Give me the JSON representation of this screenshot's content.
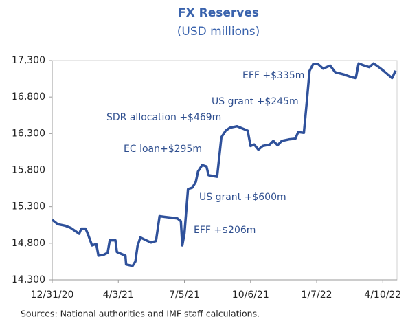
{
  "chart_data": {
    "type": "line",
    "title": "FX Reserves",
    "subtitle": "(USD millions)",
    "source": "Sources: National authorities and IMF staff calculations.",
    "x": [
      "12/31/20",
      "1/8/21",
      "1/18/21",
      "1/26/21",
      "2/7/21",
      "2/10/21",
      "2/16/21",
      "2/19/21",
      "2/25/21",
      "3/3/21",
      "3/6/21",
      "3/13/21",
      "3/19/21",
      "3/22/21",
      "3/30/21",
      "4/1/21",
      "4/13/21",
      "4/14/21",
      "4/23/21",
      "4/27/21",
      "4/30/21",
      "5/4/21",
      "5/10/21",
      "5/19/21",
      "5/26/21",
      "5/31/21",
      "6/8/21",
      "6/25/21",
      "6/30/21",
      "7/2/21",
      "7/5/21",
      "7/10/21",
      "7/16/21",
      "7/21/21",
      "7/24/21",
      "7/30/21",
      "8/5/21",
      "8/8/21",
      "8/20/21",
      "8/26/21",
      "9/1/21",
      "9/7/21",
      "9/17/21",
      "9/27/21",
      "10/2/21",
      "10/6/21",
      "10/11/21",
      "10/17/21",
      "10/23/21",
      "11/2/21",
      "11/7/21",
      "11/13/21",
      "11/19/21",
      "11/29/21",
      "12/8/21",
      "12/12/21",
      "12/20/21",
      "12/24/21",
      "12/28/21",
      "1/2/22",
      "1/9/22",
      "1/16/22",
      "1/26/22",
      "2/2/22",
      "2/14/22",
      "2/26/22",
      "3/3/22",
      "3/7/22",
      "3/15/22",
      "3/22/22",
      "3/28/22",
      "4/3/22",
      "4/11/22",
      "4/23/22",
      "4/28/22"
    ],
    "series": [
      {
        "name": "FX Reserves",
        "color": "#2f519b",
        "values": [
          15120,
          15060,
          15040,
          15010,
          14930,
          15000,
          15000,
          14930,
          14770,
          14790,
          14630,
          14640,
          14670,
          14840,
          14840,
          14680,
          14630,
          14510,
          14490,
          14550,
          14760,
          14880,
          14850,
          14810,
          14830,
          15170,
          15160,
          15140,
          15100,
          14770,
          14930,
          15540,
          15560,
          15640,
          15780,
          15870,
          15850,
          15730,
          15710,
          16250,
          16340,
          16380,
          16400,
          16360,
          16340,
          16130,
          16150,
          16080,
          16130,
          16150,
          16200,
          16140,
          16200,
          16220,
          16230,
          16320,
          16310,
          16720,
          17160,
          17250,
          17250,
          17190,
          17230,
          17140,
          17110,
          17070,
          17060,
          17260,
          17230,
          17210,
          17260,
          17220,
          17160,
          17060,
          17160
        ]
      }
    ],
    "xlim": [
      "12/31/20",
      "4/30/22"
    ],
    "xticks": [
      "12/31/20",
      "4/3/21",
      "7/5/21",
      "10/6/21",
      "1/7/22",
      "4/10/22"
    ],
    "ylim": [
      14300,
      17300
    ],
    "yticks": [
      {
        "value": 14300,
        "label": "14,300"
      },
      {
        "value": 14800,
        "label": "14,800"
      },
      {
        "value": 15300,
        "label": "15,300"
      },
      {
        "value": 15800,
        "label": "15,800"
      },
      {
        "value": 16300,
        "label": "16,300"
      },
      {
        "value": 16800,
        "label": "16,800"
      },
      {
        "value": 17300,
        "label": "17,300"
      }
    ],
    "annotations": [
      "EFF +$335m",
      "US grant +$245m",
      "SDR allocation +$469m",
      "EC loan+$295m",
      "US grant +$600m",
      "EFF +$206m"
    ]
  }
}
